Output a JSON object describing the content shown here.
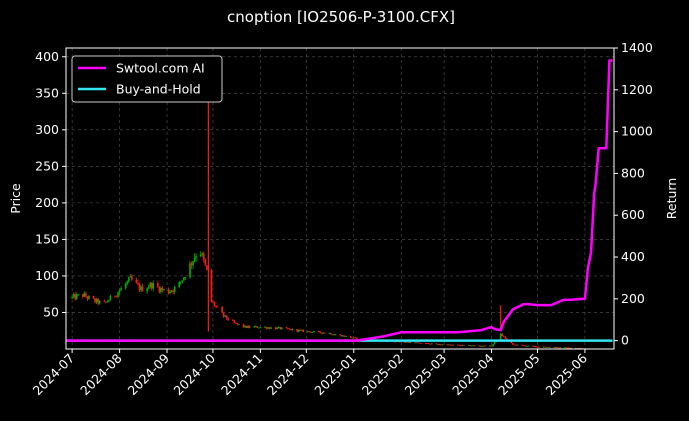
{
  "chart_data": {
    "type": "line",
    "title": "cnoption [IO2506-P-3100.CFX]",
    "xlabel": "",
    "ylabel": "Price",
    "y2label": "Return",
    "x_dates": [
      "2024-07",
      "2024-08",
      "2024-09",
      "2024-10",
      "2024-11",
      "2024-12",
      "2025-01",
      "2025-02",
      "2025-03",
      "2025-04",
      "2025-05",
      "2025-06"
    ],
    "xlim": [
      "2024-06-27",
      "2025-06-20"
    ],
    "ylim": [
      0,
      412
    ],
    "y_ticks": [
      50,
      100,
      150,
      200,
      250,
      300,
      350,
      400
    ],
    "y2lim": [
      -40,
      1400
    ],
    "y2_ticks": [
      0,
      200,
      400,
      600,
      800,
      1000,
      1200,
      1400
    ],
    "grid": true,
    "legend_position": "top-left",
    "background": "#000000",
    "candle_up_color": "#00b300",
    "candle_down_color": "#ff1a1a",
    "price_candles": [
      {
        "date": "2024-07-01",
        "close": 70
      },
      {
        "date": "2024-07-08",
        "close": 74
      },
      {
        "date": "2024-07-15",
        "close": 66
      },
      {
        "date": "2024-07-22",
        "close": 62
      },
      {
        "date": "2024-08-01",
        "close": 80
      },
      {
        "date": "2024-08-08",
        "close": 95
      },
      {
        "date": "2024-08-15",
        "close": 82
      },
      {
        "date": "2024-08-22",
        "close": 88
      },
      {
        "date": "2024-09-01",
        "close": 78
      },
      {
        "date": "2024-09-08",
        "close": 85
      },
      {
        "date": "2024-09-15",
        "close": 110
      },
      {
        "date": "2024-09-22",
        "close": 140
      },
      {
        "date": "2024-09-27",
        "close": 105
      },
      {
        "date": "2024-09-30",
        "close": 65
      },
      {
        "date": "2024-10-08",
        "close": 45
      },
      {
        "date": "2024-10-15",
        "close": 35
      },
      {
        "date": "2024-10-22",
        "close": 30
      },
      {
        "date": "2024-11-01",
        "close": 30
      },
      {
        "date": "2024-11-15",
        "close": 28
      },
      {
        "date": "2024-12-01",
        "close": 24
      },
      {
        "date": "2024-12-15",
        "close": 22
      },
      {
        "date": "2025-01-01",
        "close": 15
      },
      {
        "date": "2025-01-15",
        "close": 12
      },
      {
        "date": "2025-02-01",
        "close": 10
      },
      {
        "date": "2025-02-15",
        "close": 8
      },
      {
        "date": "2025-03-01",
        "close": 6
      },
      {
        "date": "2025-03-15",
        "close": 5
      },
      {
        "date": "2025-04-01",
        "close": 4
      },
      {
        "date": "2025-04-07",
        "close": 20
      },
      {
        "date": "2025-04-15",
        "close": 6
      },
      {
        "date": "2025-05-01",
        "close": 3
      },
      {
        "date": "2025-05-15",
        "close": 2
      },
      {
        "date": "2025-06-01",
        "close": 1
      }
    ],
    "price_spikes": [
      {
        "date": "2024-09-28",
        "high": 345
      },
      {
        "date": "2025-04-07",
        "high": 60
      }
    ],
    "series": [
      {
        "name": "Swtool.com AI",
        "color": "#ff00ff",
        "axis": "right",
        "x": [
          "2024-06-27",
          "2024-12-31",
          "2025-01-03",
          "2025-01-20",
          "2025-02-01",
          "2025-02-20",
          "2025-03-10",
          "2025-03-25",
          "2025-04-01",
          "2025-04-03",
          "2025-04-07",
          "2025-04-09",
          "2025-04-15",
          "2025-04-22",
          "2025-04-25",
          "2025-05-01",
          "2025-05-10",
          "2025-05-18",
          "2025-05-22",
          "2025-06-01",
          "2025-06-03",
          "2025-06-05",
          "2025-06-07",
          "2025-06-08",
          "2025-06-10",
          "2025-06-12",
          "2025-06-15",
          "2025-06-17",
          "2025-06-19"
        ],
        "values": [
          0,
          0,
          0,
          20,
          40,
          40,
          40,
          50,
          65,
          55,
          50,
          90,
          150,
          175,
          175,
          170,
          170,
          195,
          195,
          200,
          350,
          420,
          700,
          750,
          920,
          920,
          920,
          1340,
          1340
        ]
      },
      {
        "name": "Buy-and-Hold",
        "color": "#33e6f2",
        "axis": "right",
        "x": [
          "2024-06-27",
          "2025-06-19"
        ],
        "values": [
          0,
          0
        ]
      }
    ]
  }
}
